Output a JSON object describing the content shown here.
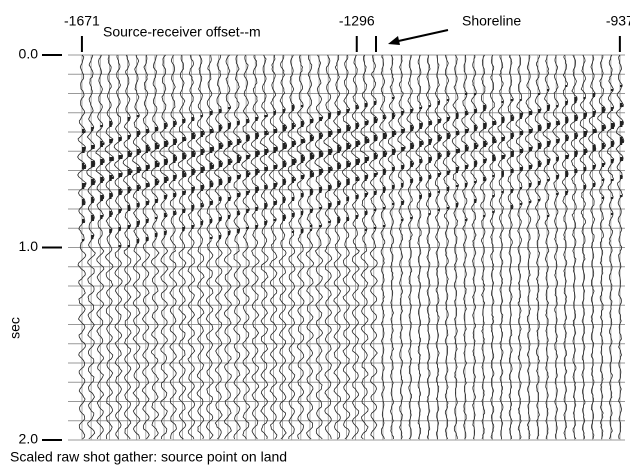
{
  "chart_data": {
    "type": "seismic",
    "x_label": "Source-receiver offset--m",
    "y_label": "sec",
    "annotation": "Shoreline",
    "caption": "Scaled raw shot gather: source point on land",
    "xlim": [
      -1690,
      -930
    ],
    "xticks": [
      -1671,
      -1296,
      -937
    ],
    "ylim": [
      0,
      2
    ],
    "yticks": [
      {
        "value": 0,
        "label": "0.0"
      },
      {
        "value": 1,
        "label": "1.0"
      },
      {
        "value": 2,
        "label": "2.0"
      }
    ],
    "y_inverted": true,
    "trace_color": "#222222"
  }
}
